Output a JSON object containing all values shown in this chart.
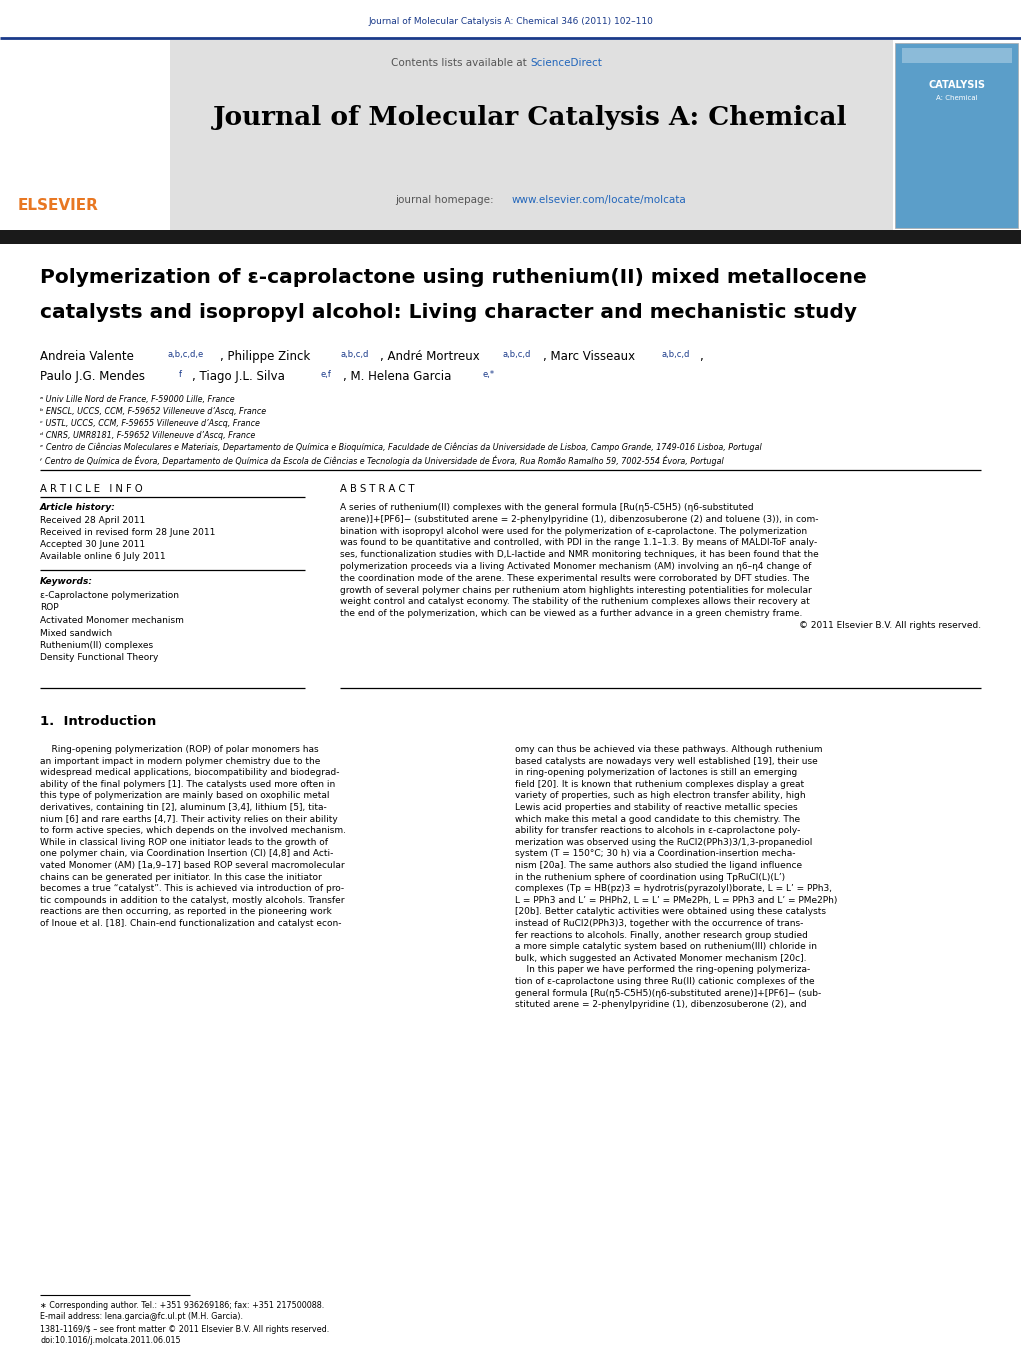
{
  "page_width": 10.21,
  "page_height": 13.51,
  "dpi": 100,
  "bg": "#ffffff",
  "journal_ref": "Journal of Molecular Catalysis A: Chemical 346 (2011) 102–110",
  "journal_ref_color": "#1a3a8a",
  "header_bg": "#e0e0e0",
  "sciencedirect_color": "#2266bb",
  "journal_title": "Journal of Molecular Catalysis A: Chemical",
  "homepage_label": "journal homepage: ",
  "homepage_url": "www.elsevier.com/locate/molcata",
  "homepage_url_color": "#2266bb",
  "dark_bar_color": "#1a1a1a",
  "top_rule_color": "#1a3a8a",
  "elsevier_orange": "#e87722",
  "article_title_line1": "Polymerization of ε-caprolactone using ruthenium(II) mixed metallocene",
  "article_title_line2": "catalysts and isopropyl alcohol: Living character and mechanistic study",
  "authors_line1": "Andreia Valente ",
  "authors_sup1": "a,b,c,d,e",
  "authors_mid1": ", Philippe Zinck ",
  "authors_sup2": "a,b,c,d",
  "authors_mid2": ", André Mortreux ",
  "authors_sup3": "a,b,c,d",
  "authors_mid3": ", Marc Visseaux ",
  "authors_sup4": "a,b,c,d",
  "authors_mid4": ",",
  "authors_line2a": "Paulo J.G. Mendes ",
  "authors_sup5": "f",
  "authors_mid5": ", Tiago J.L. Silva ",
  "authors_sup6": "e,f",
  "authors_mid6": ", M. Helena Garcia ",
  "authors_sup7": "e,∗",
  "affil_a": "ᵃ Univ Lille Nord de France, F-59000 Lille, France",
  "affil_b": "ᵇ ENSCL, UCCS, CCM, F-59652 Villeneuve d’Ascq, France",
  "affil_c": "ᶜ USTL, UCCS, CCM, F-59655 Villeneuve d’Ascq, France",
  "affil_d": "ᵈ CNRS, UMR8181, F-59652 Villeneuve d’Ascq, France",
  "affil_e": "ᵉ Centro de Ciências Moleculares e Materiais, Departamento de Química e Bioquímica, Faculdade de Ciências da Universidade de Lisboa, Campo Grande, 1749-016 Lisboa, Portugal",
  "affil_f": "ᶠ Centro de Química de Évora, Departamento de Química da Escola de Ciências e Tecnologia da Universidade de Évora, Rua Romão Ramalho 59, 7002-554 Évora, Portugal",
  "article_info_header": "A R T I C L E   I N F O",
  "abstract_header": "A B S T R A C T",
  "article_history_label": "Article history:",
  "received": "Received 28 April 2011",
  "revised": "Received in revised form 28 June 2011",
  "accepted": "Accepted 30 June 2011",
  "available": "Available online 6 July 2011",
  "keywords_label": "Keywords:",
  "kw1": "ε-Caprolactone polymerization",
  "kw2": "ROP",
  "kw3": "Activated Monomer mechanism",
  "kw4": "Mixed sandwich",
  "kw5": "Ruthenium(II) complexes",
  "kw6": "Density Functional Theory",
  "abstract_lines": [
    "A series of ruthenium(II) complexes with the general formula [Ru(η5-C5H5) (η6-substituted",
    "arene)]+[PF6]− (substituted arene = 2-phenylpyridine (1), dibenzosuberone (2) and toluene (3)), in com-",
    "bination with isopropyl alcohol were used for the polymerization of ε-caprolactone. The polymerization",
    "was found to be quantitative and controlled, with PDI in the range 1.1–1.3. By means of MALDI-ToF analy-",
    "ses, functionalization studies with D,L-lactide and NMR monitoring techniques, it has been found that the",
    "polymerization proceeds via a living Activated Monomer mechanism (AM) involving an η6–η4 change of",
    "the coordination mode of the arene. These experimental results were corroborated by DFT studies. The",
    "growth of several polymer chains per ruthenium atom highlights interesting potentialities for molecular",
    "weight control and catalyst economy. The stability of the ruthenium complexes allows their recovery at",
    "the end of the polymerization, which can be viewed as a further advance in a green chemistry frame."
  ],
  "copyright": "© 2011 Elsevier B.V. All rights reserved.",
  "section1_header": "1.  Introduction",
  "col1_lines": [
    "    Ring-opening polymerization (ROP) of polar monomers has",
    "an important impact in modern polymer chemistry due to the",
    "widespread medical applications, biocompatibility and biodegrad-",
    "ability of the final polymers [1]. The catalysts used more often in",
    "this type of polymerization are mainly based on oxophilic metal",
    "derivatives, containing tin [2], aluminum [3,4], lithium [5], tita-",
    "nium [6] and rare earths [4,7]. Their activity relies on their ability",
    "to form active species, which depends on the involved mechanism.",
    "While in classical living ROP one initiator leads to the growth of",
    "one polymer chain, via Coordination Insertion (CI) [4,8] and Acti-",
    "vated Monomer (AM) [1a,9–17] based ROP several macromolecular",
    "chains can be generated per initiator. In this case the initiator",
    "becomes a true “catalyst”. This is achieved via introduction of pro-",
    "tic compounds in addition to the catalyst, mostly alcohols. Transfer",
    "reactions are then occurring, as reported in the pioneering work",
    "of Inoue et al. [18]. Chain-end functionalization and catalyst econ-"
  ],
  "col2_lines": [
    "omy can thus be achieved via these pathways. Although ruthenium",
    "based catalysts are nowadays very well established [19], their use",
    "in ring-opening polymerization of lactones is still an emerging",
    "field [20]. It is known that ruthenium complexes display a great",
    "variety of properties, such as high electron transfer ability, high",
    "Lewis acid properties and stability of reactive metallic species",
    "which make this metal a good candidate to this chemistry. The",
    "ability for transfer reactions to alcohols in ε-caprolactone poly-",
    "merization was observed using the RuCl2(PPh3)3/1,3-propanediol",
    "system (T = 150°C; 30 h) via a Coordination-insertion mecha-",
    "nism [20a]. The same authors also studied the ligand influence",
    "in the ruthenium sphere of coordination using TpRuCl(L)(L’)",
    "complexes (Tp = HB(pz)3 = hydrotris(pyrazolyl)borate, L = L’ = PPh3,",
    "L = PPh3 and L’ = PHPh2, L = L’ = PMe2Ph, L = PPh3 and L’ = PMe2Ph)",
    "[20b]. Better catalytic activities were obtained using these catalysts",
    "instead of RuCl2(PPh3)3, together with the occurrence of trans-",
    "fer reactions to alcohols. Finally, another research group studied",
    "a more simple catalytic system based on ruthenium(III) chloride in",
    "bulk, which suggested an Activated Monomer mechanism [20c].",
    "    In this paper we have performed the ring-opening polymeriza-",
    "tion of ε-caprolactone using three Ru(II) cationic complexes of the",
    "general formula [Ru(η5-C5H5)(η6-substituted arene)]+[PF6]− (sub-",
    "stituted arene = 2-phenylpyridine (1), dibenzosuberone (2), and"
  ],
  "footnote_star": "∗ Corresponding author. Tel.: +351 936269186; fax: +351 217500088.",
  "footnote_email": "E-mail address: lena.garcia@fc.ul.pt (M.H. Garcia).",
  "issn_line": "1381-1169/$ – see front matter © 2011 Elsevier B.V. All rights reserved.",
  "doi_line": "doi:10.1016/j.molcata.2011.06.015"
}
